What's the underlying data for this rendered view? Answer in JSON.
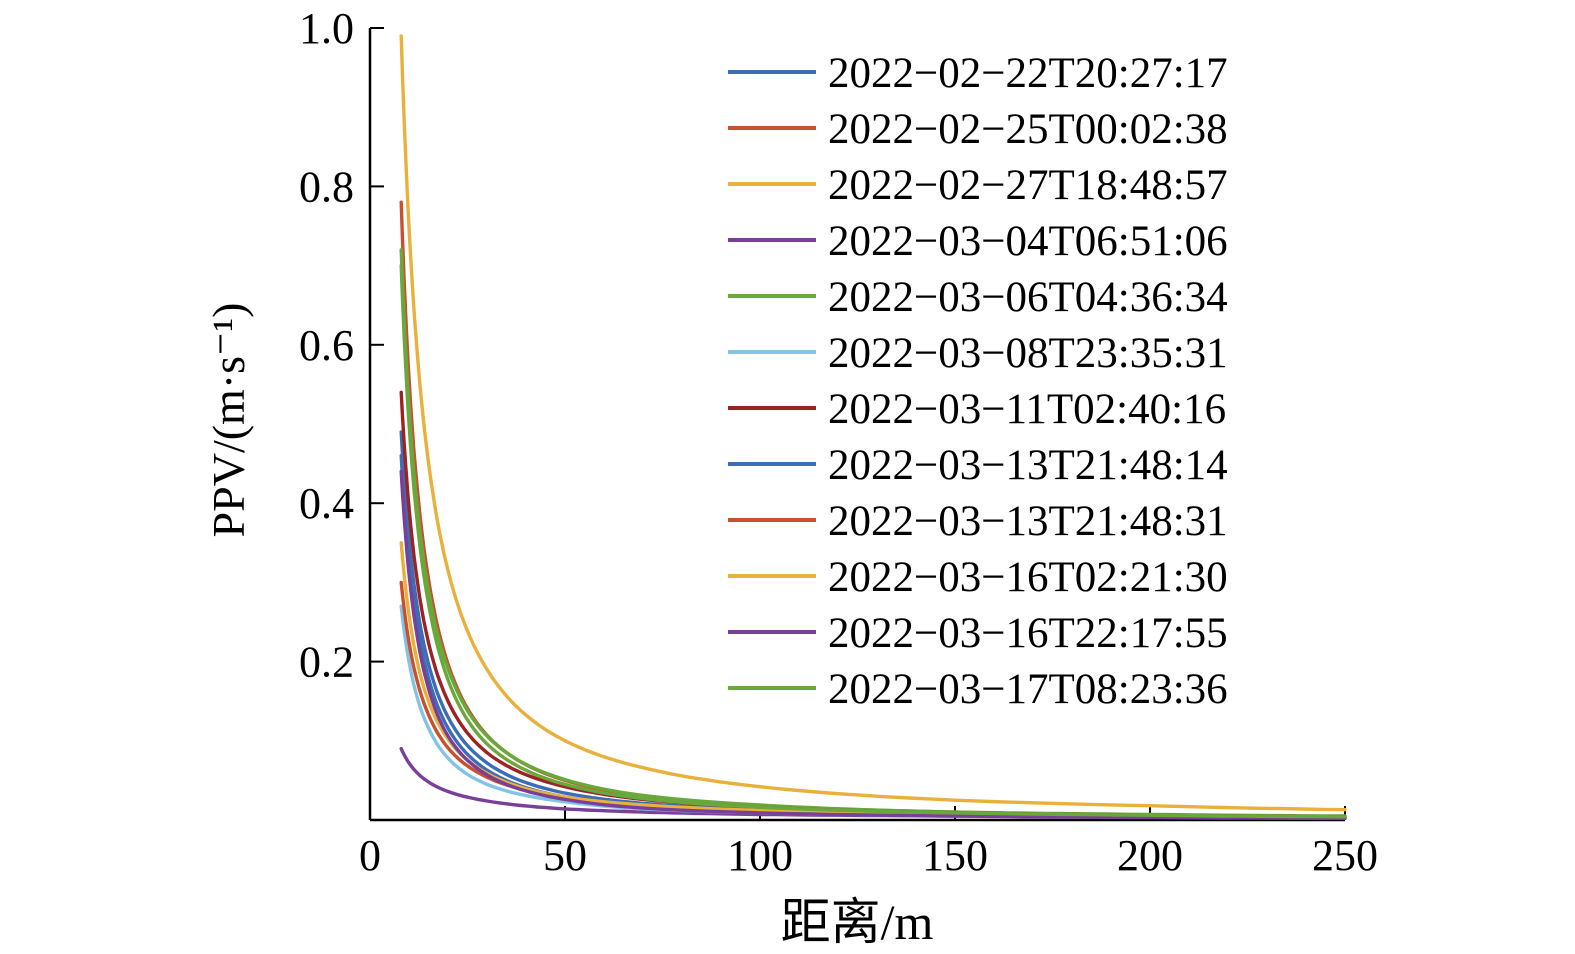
{
  "chart_data": {
    "type": "line",
    "title": "",
    "xlabel": "距离/m",
    "ylabel": "PPV/(m·s⁻¹)",
    "xlim": [
      0,
      250
    ],
    "ylim": [
      0,
      1.0
    ],
    "x_ticks": [
      "0",
      "50",
      "100",
      "150",
      "200",
      "250"
    ],
    "y_ticks": [
      "0.2",
      "0.4",
      "0.6",
      "0.8",
      "1.0"
    ],
    "grid": false,
    "legend_position": "upper-right-inside-no-border",
    "x": [
      8,
      10,
      15,
      20,
      30,
      50,
      70,
      100,
      150,
      200,
      250
    ],
    "series": [
      {
        "name": "2022−02−22T20:27:17",
        "color": "#3C6CB4",
        "values": [
          0.49,
          0.355,
          0.197,
          0.13,
          0.072,
          0.034,
          0.021,
          0.013,
          0.007,
          0.005,
          0.003
        ]
      },
      {
        "name": "2022−02−25T00:02:38",
        "color": "#C8502F",
        "values": [
          0.78,
          0.558,
          0.304,
          0.197,
          0.107,
          0.05,
          0.03,
          0.018,
          0.01,
          0.006,
          0.004
        ]
      },
      {
        "name": "2022−02−27T18:48:57",
        "color": "#E9B03C",
        "values": [
          0.99,
          0.749,
          0.451,
          0.315,
          0.19,
          0.1,
          0.066,
          0.042,
          0.025,
          0.018,
          0.013
        ]
      },
      {
        "name": "2022−03−04T06:51:06",
        "color": "#7A3F98",
        "values": [
          0.09,
          0.072,
          0.048,
          0.036,
          0.024,
          0.014,
          0.01,
          0.007,
          0.005,
          0.004,
          0.003
        ]
      },
      {
        "name": "2022−03−06T04:36:34",
        "color": "#69A83A",
        "values": [
          0.72,
          0.521,
          0.289,
          0.191,
          0.106,
          0.051,
          0.031,
          0.019,
          0.01,
          0.007,
          0.005
        ]
      },
      {
        "name": "2022−03−08T23:35:31",
        "color": "#82C3E6",
        "values": [
          0.27,
          0.2,
          0.116,
          0.078,
          0.045,
          0.023,
          0.014,
          0.009,
          0.005,
          0.004,
          0.003
        ]
      },
      {
        "name": "2022−03−11T02:40:16",
        "color": "#9B2423",
        "values": [
          0.54,
          0.395,
          0.224,
          0.15,
          0.085,
          0.042,
          0.026,
          0.016,
          0.009,
          0.006,
          0.004
        ]
      },
      {
        "name": "2022−03−13T21:48:14",
        "color": "#3C6CB4",
        "values": [
          0.46,
          0.329,
          0.179,
          0.116,
          0.063,
          0.029,
          0.018,
          0.01,
          0.006,
          0.004,
          0.003
        ]
      },
      {
        "name": "2022−03−13T21:48:31",
        "color": "#C8502F",
        "values": [
          0.3,
          0.224,
          0.133,
          0.091,
          0.054,
          0.028,
          0.018,
          0.011,
          0.007,
          0.005,
          0.003
        ]
      },
      {
        "name": "2022−03−16T02:21:30",
        "color": "#E9B03C",
        "values": [
          0.35,
          0.259,
          0.15,
          0.102,
          0.059,
          0.029,
          0.019,
          0.012,
          0.007,
          0.005,
          0.003
        ]
      },
      {
        "name": "2022−03−16T22:17:55",
        "color": "#7A3F98",
        "values": [
          0.44,
          0.311,
          0.166,
          0.106,
          0.057,
          0.026,
          0.015,
          0.009,
          0.005,
          0.003,
          0.002
        ]
      },
      {
        "name": "2022−03−17T08:23:36",
        "color": "#69A83A",
        "values": [
          0.7,
          0.501,
          0.273,
          0.177,
          0.096,
          0.045,
          0.027,
          0.016,
          0.009,
          0.006,
          0.004
        ]
      }
    ]
  }
}
